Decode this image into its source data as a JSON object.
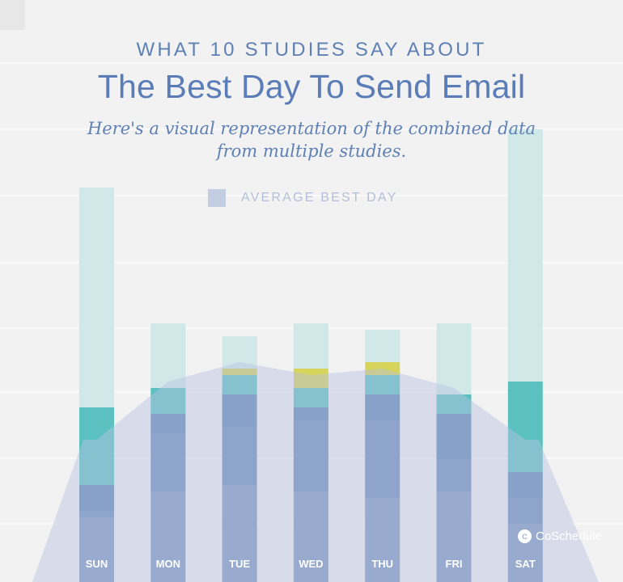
{
  "header": {
    "kicker": "WHAT 10 STUDIES SAY ABOUT",
    "title": "The Best Day To Send Email",
    "subtitle": "Here's a visual representation of the combined data from multiple studies."
  },
  "legend": {
    "label": "AVERAGE BEST DAY",
    "color": "#c3cde2"
  },
  "brand": {
    "name": "CoSchedule",
    "icon": "coschedule-logo-icon"
  },
  "colors": {
    "background": "#f2f2f2",
    "gridline": "#ffffff",
    "bar_segments": [
      "#7e97c0",
      "#6e8db8",
      "#6088b5",
      "#5bc1c0",
      "#d7d45c",
      "#d0e8e8"
    ],
    "average_area": "#b7c2df",
    "day_label": "#ffffff"
  },
  "chart_data": {
    "type": "bar",
    "stacked": true,
    "categories": [
      "SUN",
      "MON",
      "TUE",
      "WED",
      "THU",
      "FRI",
      "SAT"
    ],
    "series": [
      {
        "color": "#7e97c0",
        "values": [
          1.0,
          1.4,
          1.5,
          1.4,
          1.3,
          1.4,
          0.9
        ]
      },
      {
        "color": "#6e8db8",
        "values": [
          0.1,
          0.9,
          0.9,
          1.1,
          1.2,
          0.5,
          0.4
        ]
      },
      {
        "color": "#6088b5",
        "values": [
          0.4,
          0.3,
          0.5,
          0.2,
          0.4,
          0.7,
          0.4
        ]
      },
      {
        "color": "#5bc1c0",
        "values": [
          1.2,
          0.4,
          0.3,
          0.3,
          0.3,
          0.3,
          1.4
        ]
      },
      {
        "color": "#d7d45c",
        "values": [
          0,
          0,
          0.1,
          0.3,
          0.2,
          0,
          0
        ]
      },
      {
        "color": "#d0e8e8",
        "values": [
          3.4,
          1.0,
          0.5,
          0.7,
          0.5,
          1.1,
          3.9
        ]
      }
    ],
    "average": {
      "name": "AVERAGE BEST DAY",
      "values": [
        2.2,
        3.1,
        3.4,
        3.2,
        3.3,
        3.0,
        2.2
      ]
    },
    "ylim": [
      0,
      8
    ],
    "grid": true,
    "legend_position": "top-center"
  }
}
